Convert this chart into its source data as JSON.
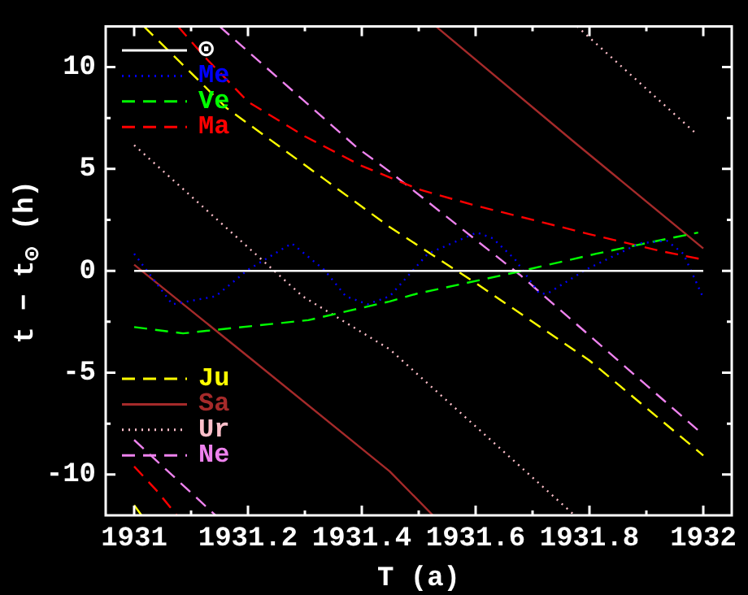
{
  "chart_data": {
    "type": "line",
    "xlabel": "T (a)",
    "ylabel": "t − t$_{⊙}$ (h)",
    "xlim": [
      1930.95,
      1932.05
    ],
    "ylim": [
      -12,
      12
    ],
    "xticks": [
      1931,
      {
        "value": 1931.1,
        "label": null
      },
      1931.2,
      {
        "value": 1931.3,
        "label": null
      },
      1931.4,
      {
        "value": 1931.5,
        "label": null
      },
      1931.6,
      {
        "value": 1931.7,
        "label": null
      },
      1931.8,
      {
        "value": 1931.9,
        "label": null
      },
      1932
    ],
    "yticks": [
      -10,
      {
        "value": -7.5,
        "label": null
      },
      -5,
      {
        "value": -2.5,
        "label": null
      },
      0,
      {
        "value": 2.5,
        "label": null
      },
      5,
      {
        "value": 7.5,
        "label": null
      },
      10
    ],
    "legend": "left",
    "series": [
      {
        "name": "⊙",
        "color": "#ffffff",
        "line_style": "solid",
        "x": [
          1931,
          1932
        ],
        "values": [
          0,
          0
        ]
      },
      {
        "name": "Me",
        "color": "#0000ff",
        "line_style": "dotted",
        "x": [
          1931,
          1931.067,
          1931.143,
          1931.2,
          1931.277,
          1931.334,
          1931.372,
          1931.41,
          1931.449,
          1931.516,
          1931.602,
          1931.63,
          1931.669,
          1931.712,
          1931.726,
          1931.793,
          1931.888,
          1931.936,
          1931.965,
          1931.998
        ],
        "values": [
          0.84,
          -1.64,
          -1.25,
          0.05,
          1.35,
          0.05,
          -1.25,
          -1.64,
          -1.25,
          0.84,
          1.88,
          1.6,
          0.57,
          -1.12,
          -1.12,
          0.05,
          1.35,
          1.48,
          0.84,
          -1.2
        ]
      },
      {
        "name": "Ve",
        "color": "#00ff00",
        "line_style": "dashed",
        "x": [
          1931,
          1931.086,
          1931.172,
          1931.306,
          1931.449,
          1931.497,
          1931.669,
          1931.812,
          1931.898,
          1931.991
        ],
        "values": [
          -2.76,
          -3.07,
          -2.81,
          -2.42,
          -1.5,
          -1.12,
          -0.08,
          0.84,
          1.35,
          1.88
        ]
      },
      {
        "name": "Ma",
        "color": "#ff0000",
        "line_style": "dashed",
        "x": [
          1931,
          1931.04,
          1931.075,
          1931.076,
          1931.077,
          1931.124,
          1931.2,
          1931.3,
          1931.4,
          1931.5,
          1931.6,
          1931.678,
          1931.8,
          1931.927,
          1932
        ],
        "values": [
          -9.6,
          -10.8,
          -12,
          null,
          12,
          10.5,
          8.3,
          6.6,
          5.15,
          4.0,
          3.2,
          2.66,
          1.8,
          0.96,
          0.55
        ]
      },
      {
        "name": "Ju",
        "color": "#ffff00",
        "line_style": "dashed",
        "x": [
          1931,
          1931.013,
          1931.015,
          1931.017,
          1931.162,
          1931.335,
          1931.45,
          1931.6,
          1931.8,
          1932
        ],
        "values": [
          -11.5,
          -12,
          null,
          12,
          8.0,
          4.48,
          2.13,
          -0.6,
          -4.4,
          -9.06
        ]
      },
      {
        "name": "Sa",
        "color": "#a52a2a",
        "line_style": "solid",
        "x": [
          1931,
          1931.2,
          1931.449,
          1931.525,
          1931.527,
          1931.53,
          1931.774,
          1932
        ],
        "values": [
          0.3,
          -4.2,
          -9.84,
          -12,
          null,
          12,
          6.3,
          1.1
        ]
      },
      {
        "name": "Ur",
        "color": "#ffc0cb",
        "line_style": "dotted",
        "x": [
          1931,
          1931.296,
          1931.449,
          1931.774,
          1931.776,
          1931.778,
          1931.984
        ],
        "values": [
          6.17,
          -1.25,
          -3.85,
          -12,
          null,
          12,
          6.82
        ]
      },
      {
        "name": "Ne",
        "color": "#ee82ee",
        "line_style": "dashed",
        "x": [
          1931,
          1931.143,
          1931.146,
          1931.15,
          1931.392,
          1931.449,
          1931.678,
          1931.998
        ],
        "values": [
          -8.3,
          -12,
          null,
          12,
          6.04,
          4.87,
          -0.2,
          -8.0
        ]
      }
    ]
  }
}
